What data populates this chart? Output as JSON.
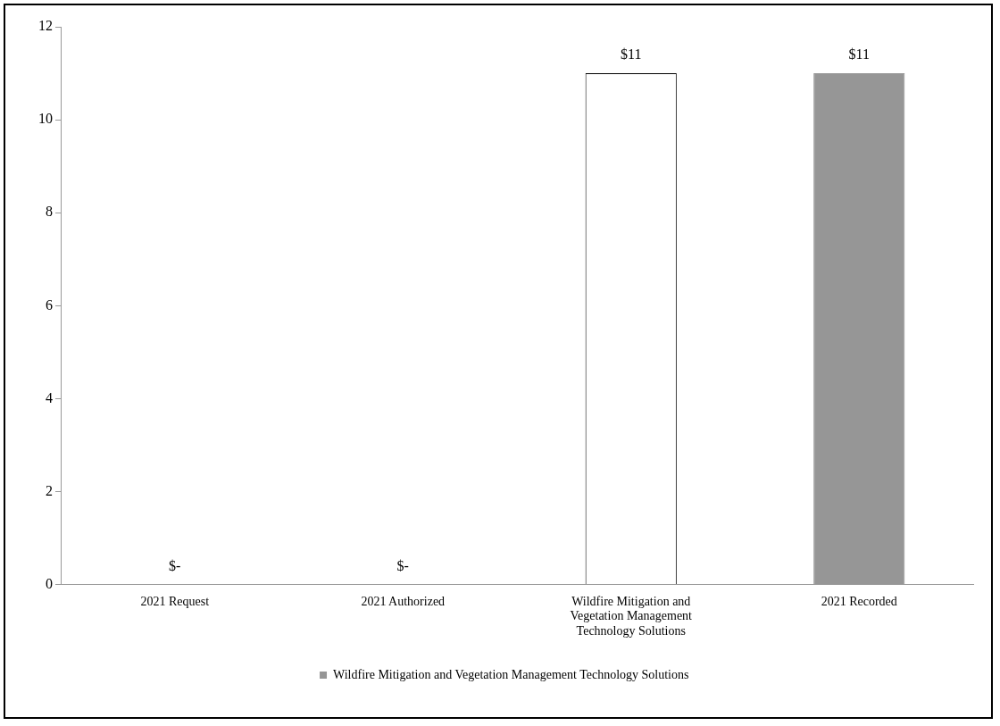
{
  "chart_data": {
    "type": "bar",
    "categories": [
      "2021 Request",
      "2021 Authorized",
      "Wildfire Mitigation and Vegetation Management Technology Solutions",
      "2021 Recorded"
    ],
    "series": [
      {
        "name": "Wildfire Mitigation and Vegetation Management Technology Solutions",
        "color": "#969696",
        "colors": [
          "#969696",
          "#969696",
          "#ffffff",
          "#969696"
        ],
        "values": [
          0,
          0,
          11,
          11
        ],
        "value_labels": [
          "$-",
          "$-",
          "$11",
          "$11"
        ]
      }
    ],
    "ylim": [
      0,
      12
    ],
    "yticks": [
      0,
      2,
      4,
      6,
      8,
      10,
      12
    ],
    "grid": false,
    "legend": "bottom"
  }
}
